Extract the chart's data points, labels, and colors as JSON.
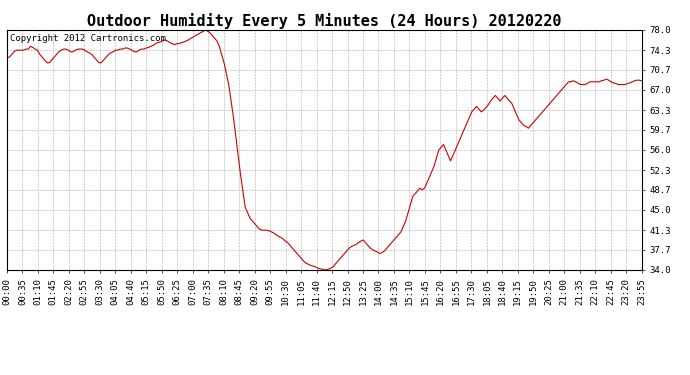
{
  "title": "Outdoor Humidity Every 5 Minutes (24 Hours) 20120220",
  "copyright_text": "Copyright 2012 Cartronics.com",
  "line_color": "#cc0000",
  "bg_color": "#ffffff",
  "plot_bg_color": "#ffffff",
  "grid_color": "#aaaaaa",
  "ylim": [
    34.0,
    78.0
  ],
  "yticks": [
    34.0,
    37.7,
    41.3,
    45.0,
    48.7,
    52.3,
    56.0,
    59.7,
    63.3,
    67.0,
    70.7,
    74.3,
    78.0
  ],
  "title_fontsize": 11,
  "tick_fontsize": 6.5,
  "copyright_fontsize": 6.5,
  "humidity_data": [
    73.0,
    73.0,
    73.5,
    74.0,
    74.3,
    74.3,
    74.3,
    74.3,
    74.5,
    74.5,
    75.0,
    74.8,
    74.5,
    74.3,
    73.5,
    73.0,
    72.5,
    72.0,
    72.0,
    72.5,
    73.0,
    73.5,
    74.0,
    74.3,
    74.5,
    74.5,
    74.3,
    74.0,
    74.0,
    74.3,
    74.5,
    74.5,
    74.5,
    74.3,
    74.0,
    73.8,
    73.5,
    73.0,
    72.5,
    72.0,
    72.0,
    72.5,
    73.0,
    73.5,
    73.8,
    74.0,
    74.3,
    74.3,
    74.5,
    74.5,
    74.7,
    74.7,
    74.5,
    74.3,
    74.0,
    74.0,
    74.3,
    74.5,
    74.5,
    74.7,
    74.8,
    75.0,
    75.2,
    75.5,
    75.7,
    75.8,
    76.0,
    76.2,
    76.0,
    75.7,
    75.5,
    75.3,
    75.5,
    75.5,
    75.7,
    75.8,
    76.0,
    76.2,
    76.5,
    76.7,
    77.0,
    77.2,
    77.5,
    77.7,
    78.0,
    77.8,
    77.5,
    77.0,
    76.5,
    76.0,
    75.0,
    73.5,
    72.0,
    70.0,
    68.0,
    65.0,
    62.0,
    58.5,
    55.0,
    51.5,
    48.5,
    45.5,
    44.5,
    43.5,
    43.0,
    42.5,
    42.0,
    41.5,
    41.3,
    41.3,
    41.3,
    41.2,
    41.0,
    40.8,
    40.5,
    40.2,
    40.0,
    39.7,
    39.3,
    39.0,
    38.5,
    38.0,
    37.5,
    37.0,
    36.5,
    36.0,
    35.5,
    35.2,
    35.0,
    34.8,
    34.7,
    34.5,
    34.3,
    34.2,
    34.1,
    34.0,
    34.1,
    34.3,
    34.5,
    35.0,
    35.5,
    36.0,
    36.5,
    37.0,
    37.5,
    38.0,
    38.3,
    38.5,
    38.7,
    39.0,
    39.3,
    39.5,
    39.0,
    38.5,
    38.0,
    37.7,
    37.5,
    37.3,
    37.0,
    37.2,
    37.5,
    38.0,
    38.5,
    39.0,
    39.5,
    40.0,
    40.5,
    41.0,
    42.0,
    43.0,
    44.5,
    46.0,
    47.5,
    48.0,
    48.5,
    49.0,
    48.7,
    49.0,
    50.0,
    51.0,
    52.0,
    53.0,
    54.5,
    56.0,
    56.5,
    57.0,
    56.0,
    55.0,
    54.0,
    55.0,
    56.0,
    57.0,
    58.0,
    59.0,
    60.0,
    61.0,
    62.0,
    63.0,
    63.5,
    64.0,
    63.5,
    63.0,
    63.3,
    63.8,
    64.3,
    65.0,
    65.5,
    66.0,
    65.5,
    65.0,
    65.5,
    66.0,
    65.5,
    65.0,
    64.5,
    63.5,
    62.5,
    61.5,
    61.0,
    60.5,
    60.3,
    60.0,
    60.5,
    61.0,
    61.5,
    62.0,
    62.5,
    63.0,
    63.5,
    64.0,
    64.5,
    65.0,
    65.5,
    66.0,
    66.5,
    67.0,
    67.5,
    68.0,
    68.5,
    68.5,
    68.7,
    68.5,
    68.3,
    68.0,
    68.0,
    68.0,
    68.2,
    68.5,
    68.5,
    68.5,
    68.5,
    68.5,
    68.7,
    68.8,
    69.0,
    68.8,
    68.5,
    68.3,
    68.2,
    68.0,
    68.0,
    68.0,
    68.0,
    68.2,
    68.3,
    68.5,
    68.7,
    68.8,
    68.8,
    68.7
  ],
  "xtick_labels": [
    "00:00",
    "00:35",
    "01:10",
    "01:45",
    "02:20",
    "02:55",
    "03:30",
    "04:05",
    "04:40",
    "05:15",
    "05:50",
    "06:25",
    "07:00",
    "07:35",
    "08:10",
    "08:45",
    "09:20",
    "09:55",
    "10:30",
    "11:05",
    "11:40",
    "12:15",
    "12:50",
    "13:25",
    "14:00",
    "14:35",
    "15:10",
    "15:45",
    "16:20",
    "16:55",
    "17:30",
    "18:05",
    "18:40",
    "19:15",
    "19:50",
    "20:25",
    "21:00",
    "21:35",
    "22:10",
    "22:45",
    "23:20",
    "23:55"
  ]
}
